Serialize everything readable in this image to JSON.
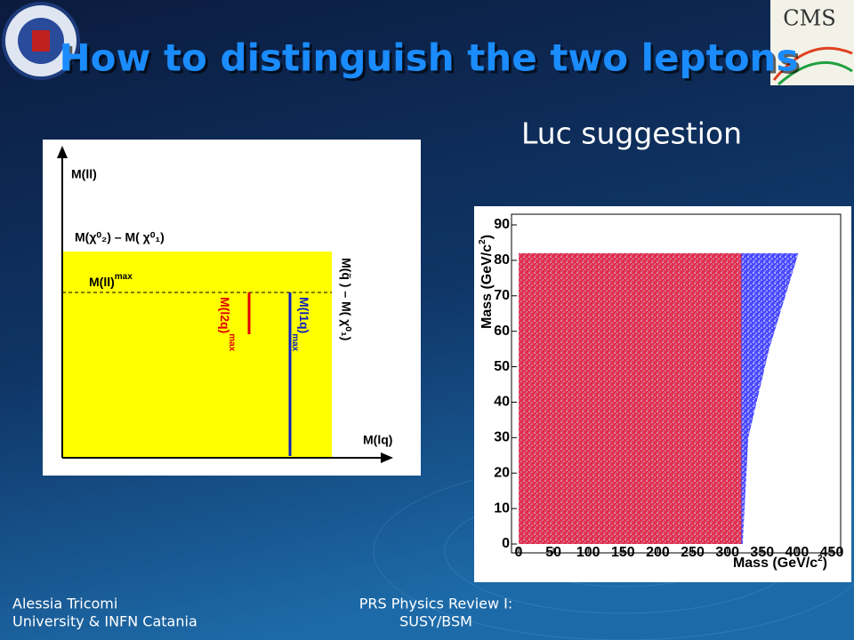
{
  "header": {
    "title": "How to distinguish the two leptons",
    "subtitle": "Luc suggestion",
    "logo": "CMS"
  },
  "diagram": {
    "y_axis": "M(ll)",
    "top_edge": "M(χ⁰₂) – M( χ⁰₁)",
    "dashed": {
      "text": "M(ll)",
      "sup": "max"
    },
    "red_line": {
      "text": "M(l2q)",
      "sup": "max"
    },
    "blue_line": {
      "text": "M(l1q)",
      "sup": "max"
    },
    "right_edge": "M(q̃ ) – M( χ⁰₁)",
    "x_axis": "M(lq)"
  },
  "chart_data": {
    "type": "scatter",
    "xlabel": {
      "text": "Mass (GeV/c",
      "sup": "2",
      "end": ")"
    },
    "ylabel": {
      "text": "Mass (GeV/c",
      "sup": "2",
      "end": ")"
    },
    "xlim": [
      0,
      450
    ],
    "ylim": [
      0,
      90
    ],
    "xticks": [
      0,
      50,
      100,
      150,
      200,
      250,
      300,
      350,
      400,
      450
    ],
    "yticks": [
      0,
      10,
      20,
      30,
      40,
      50,
      60,
      70,
      80,
      90
    ],
    "series": [
      {
        "color": "#2a2aff",
        "x": [
          0,
          322,
          330,
          360,
          402,
          0
        ],
        "y": [
          0,
          0,
          30,
          55,
          82,
          82
        ]
      },
      {
        "color": "#ff2a2a",
        "x": [
          0,
          320,
          320,
          0
        ],
        "y": [
          0,
          0,
          82,
          82
        ]
      }
    ]
  },
  "footer": {
    "author": "Alessia Tricomi",
    "affiliation": "University & INFN Catania",
    "event": "PRS Physics Review I:",
    "topic": "SUSY/BSM"
  }
}
